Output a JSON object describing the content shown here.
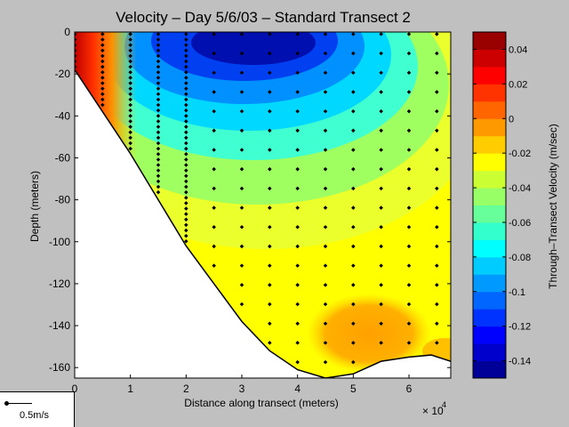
{
  "chart_data": {
    "type": "heatmap",
    "title": "Velocity – Day 5/6/03 – Standard Transect 2",
    "xlabel": "Distance along transect (meters)",
    "ylabel": "Depth (meters)",
    "x_multiplier_label": "× 10",
    "x_multiplier_exponent": "4",
    "xlim": [
      0,
      6.75
    ],
    "ylim": [
      -165,
      0
    ],
    "x_ticks": [
      0,
      1,
      2,
      3,
      4,
      5,
      6
    ],
    "y_ticks": [
      0,
      -20,
      -40,
      -60,
      -80,
      -100,
      -120,
      -140,
      -160
    ],
    "colorbar": {
      "label": "Through–Transect Velocity (m/sec)",
      "range": [
        -0.15,
        0.05
      ],
      "ticks": [
        0.04,
        0.02,
        0,
        -0.02,
        -0.04,
        -0.06,
        -0.08,
        -0.1,
        -0.12,
        -0.14
      ]
    },
    "bottom_profile": [
      [
        0,
        -18
      ],
      [
        0.5,
        -38
      ],
      [
        1,
        -58
      ],
      [
        1.5,
        -80
      ],
      [
        2,
        -102
      ],
      [
        2.5,
        -120
      ],
      [
        3,
        -138
      ],
      [
        3.5,
        -152
      ],
      [
        4,
        -161
      ],
      [
        4.5,
        -165
      ],
      [
        5,
        -163
      ],
      [
        5.5,
        -157
      ],
      [
        6,
        -155
      ],
      [
        6.4,
        -154
      ],
      [
        6.75,
        -157
      ]
    ],
    "measurement_stations": [
      0,
      0.5,
      1,
      1.5,
      2,
      2.5,
      3,
      3.5,
      4,
      4.5,
      5,
      5.5,
      6,
      6.5
    ]
  },
  "legend": {
    "scale_label": "0.5m/s"
  },
  "colors": {
    "background": "#c0c0c0",
    "bottom_fill": "#ffffff"
  }
}
